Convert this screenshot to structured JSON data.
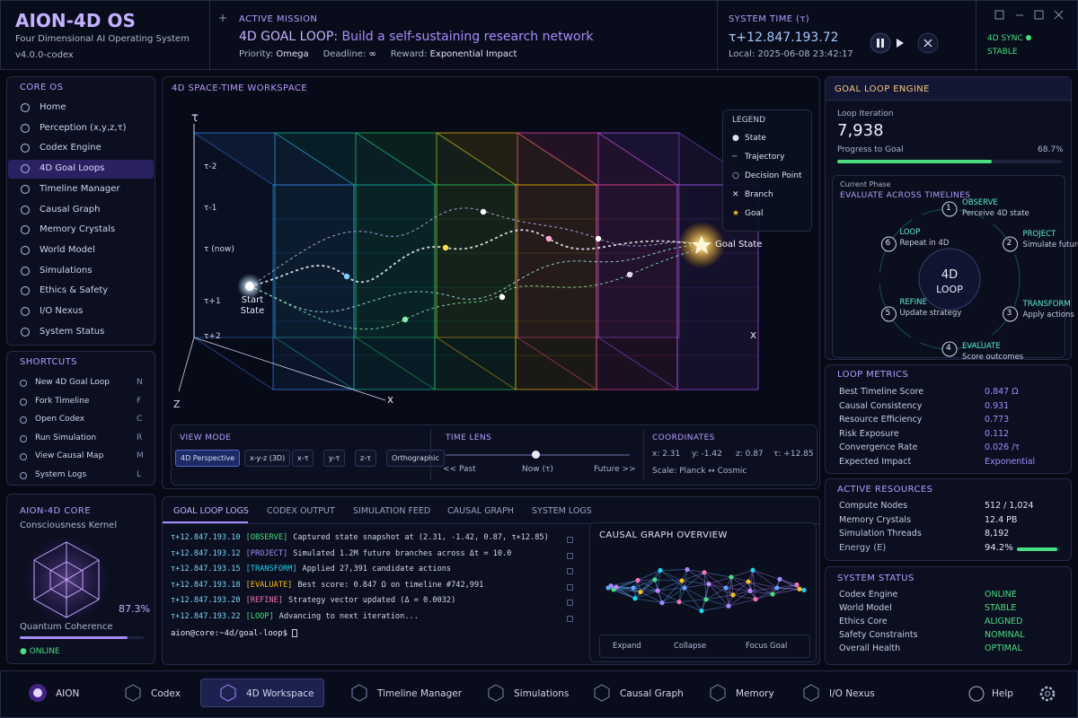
{
  "brand": {
    "title": "AION-4D OS",
    "subtitle": "Four Dimensional AI Operating System",
    "version": "v4.0.0-codex"
  },
  "mission": {
    "label": "ACTIVE MISSION",
    "title_prefix": "4D GOAL LOOP:",
    "title": "Build a self-sustaining research network",
    "priority_label": "Priority:",
    "priority": "Omega",
    "deadline_label": "Deadline:",
    "deadline": "∞",
    "reward_label": "Reward:",
    "reward": "Exponential Impact"
  },
  "system_time": {
    "label": "SYSTEM TIME (τ)",
    "value": "τ+12.847.193.72",
    "local": "Local: 2025-06-08 23:42:17"
  },
  "sync": {
    "label": "4D SYNC",
    "status": "STABLE"
  },
  "sidebar": {
    "core_title": "CORE OS",
    "core_items": [
      "Home",
      "Perception (x,y,z,τ)",
      "Codex Engine",
      "4D Goal Loops",
      "Timeline Manager",
      "Causal Graph",
      "Memory Crystals",
      "World Model",
      "Simulations",
      "Ethics & Safety",
      "I/O Nexus",
      "System Status"
    ],
    "shortcuts_title": "SHORTCUTS",
    "shortcuts": [
      {
        "label": "New 4D Goal Loop",
        "key": "N"
      },
      {
        "label": "Fork Timeline",
        "key": "F"
      },
      {
        "label": "Open Codex",
        "key": "C"
      },
      {
        "label": "Run Simulation",
        "key": "R"
      },
      {
        "label": "View Causal Map",
        "key": "M"
      },
      {
        "label": "System Logs",
        "key": "L"
      }
    ]
  },
  "core": {
    "title": "AION-4D CORE",
    "subtitle": "Consciousness Kernel",
    "coherence_label": "Quantum Coherence",
    "coherence": {
      "value": 87.3,
      "label": "87.3%"
    },
    "status": "ONLINE"
  },
  "workspace": {
    "title": "4D SPACE-TIME WORKSPACE",
    "tau_axis": "τ",
    "x_axis": "x",
    "x_axis_front": "x",
    "z_axis": "Z",
    "tau_labels": [
      "τ-2",
      "τ-1",
      "τ (now)",
      "τ+1",
      "τ+2"
    ],
    "start": "Start State",
    "goal": "Goal State",
    "legend": {
      "title": "LEGEND",
      "items": [
        "State",
        "Trajectory",
        "Decision Point",
        "Branch",
        "Goal"
      ]
    },
    "view_mode": {
      "title": "VIEW MODE",
      "options": [
        "4D Perspective",
        "x-y-z (3D)",
        "x-τ",
        "y-τ",
        "z-τ",
        "Orthographic"
      ]
    },
    "time_lens": {
      "title": "TIME LENS",
      "past": "<< Past",
      "now": "Now (τ)",
      "future": "Future >>"
    },
    "coordinates": {
      "title": "COORDINATES",
      "x": "x: 2.31",
      "y": "y: -1.42",
      "z": "z: 0.87",
      "t": "τ: +12.85",
      "scale": "Scale: Planck ↔ Cosmic"
    }
  },
  "logs": {
    "tabs": [
      "GOAL LOOP LOGS",
      "CODEX OUTPUT",
      "SIMULATION FEED",
      "CAUSAL GRAPH",
      "SYSTEM LOGS"
    ],
    "entries": [
      {
        "time": "τ+12.847.193.10",
        "tag": "[OBSERVE]",
        "text": "Captured state snapshot at (2.31, -1.42, 0.87, τ+12.85)"
      },
      {
        "time": "τ+12.847.193.12",
        "tag": "[PROJECT]",
        "text": "Simulated 1.2M future branches across Δt = 10.0"
      },
      {
        "time": "τ+12.847.193.15",
        "tag": "[TRANSFORM]",
        "text": "Applied 27,391 candidate actions"
      },
      {
        "time": "τ+12.847.193.18",
        "tag": "[EVALUATE]",
        "text": "Best score: 0.847 Ω on timeline #742,991"
      },
      {
        "time": "τ+12.847.193.20",
        "tag": "[REFINE]",
        "text": "Strategy vector updated (Δ = 0.0032)"
      },
      {
        "time": "τ+12.847.193.22",
        "tag": "[LOOP]",
        "text": "Advancing to next iteration..."
      }
    ],
    "prompt": "aion@core:~4d/goal-loop$"
  },
  "causal": {
    "title": "CAUSAL GRAPH OVERVIEW",
    "buttons": [
      "Expand",
      "Collapse",
      "Focus Goal"
    ]
  },
  "engine": {
    "title": "GOAL LOOP ENGINE",
    "iteration_label": "Loop Iteration",
    "iteration": "7,938",
    "progress_label": "Progress to Goal",
    "progress": {
      "value": 68.7,
      "label": "68.7%"
    },
    "phase_label": "Current Phase",
    "phase": "EVALUATE ACROSS TIMELINES",
    "center_top": "4D",
    "center_bottom": "LOOP",
    "steps": [
      {
        "n": "1",
        "name": "OBSERVE",
        "desc": "Perceive 4D state"
      },
      {
        "n": "2",
        "name": "PROJECT",
        "desc": "Simulate futures"
      },
      {
        "n": "3",
        "name": "TRANSFORM",
        "desc": "Apply actions"
      },
      {
        "n": "4",
        "name": "EVALUATE",
        "desc": "Score outcomes"
      },
      {
        "n": "5",
        "name": "REFINE",
        "desc": "Update strategy"
      },
      {
        "n": "6",
        "name": "LOOP",
        "desc": "Repeat in 4D"
      }
    ]
  },
  "metrics": {
    "title": "LOOP METRICS",
    "rows": [
      {
        "label": "Best Timeline Score",
        "value": "0.847 Ω"
      },
      {
        "label": "Causal Consistency",
        "value": "0.931"
      },
      {
        "label": "Resource Efficiency",
        "value": "0.773"
      },
      {
        "label": "Risk Exposure",
        "value": "0.112"
      },
      {
        "label": "Convergence Rate",
        "value": "0.026 /τ"
      },
      {
        "label": "Expected Impact",
        "value": "Exponential"
      }
    ]
  },
  "resources": {
    "title": "ACTIVE RESOURCES",
    "rows": [
      {
        "label": "Compute Nodes",
        "value": "512 / 1,024"
      },
      {
        "label": "Memory Crystals",
        "value": "12.4 PB"
      },
      {
        "label": "Simulation Threads",
        "value": "8,192"
      }
    ],
    "energy_label": "Energy (E)",
    "energy": {
      "value": 94.2,
      "label": "94.2%"
    }
  },
  "status": {
    "title": "SYSTEM STATUS",
    "rows": [
      {
        "label": "Codex Engine",
        "value": "ONLINE"
      },
      {
        "label": "World Model",
        "value": "STABLE"
      },
      {
        "label": "Ethics Core",
        "value": "ALIGNED"
      },
      {
        "label": "Safety Constraints",
        "value": "NOMINAL"
      },
      {
        "label": "Overall Health",
        "value": "OPTIMAL"
      }
    ]
  },
  "bottom_nav": {
    "items": [
      "AION",
      "Codex",
      "4D Workspace",
      "Timeline Manager",
      "Simulations",
      "Causal Graph",
      "Memory",
      "I/O Nexus"
    ],
    "help": "Help"
  }
}
